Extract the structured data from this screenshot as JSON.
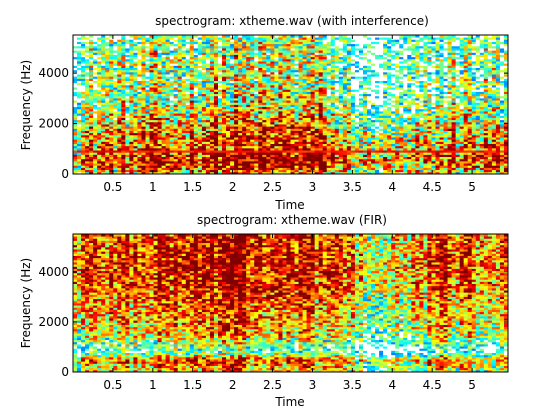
{
  "chart_data": [
    {
      "type": "heatmap",
      "title": "spectrogram: xtheme.wav (with interference)",
      "xlabel": "Time",
      "ylabel": "Frequency (Hz)",
      "xlim": [
        0.0,
        5.45
      ],
      "ylim": [
        0,
        5512
      ],
      "xticks": [
        "0.5",
        "1",
        "1.5",
        "2",
        "2.5",
        "3",
        "3.5",
        "4",
        "4.5",
        "5"
      ],
      "yticks": [
        "0",
        "2000",
        "4000"
      ],
      "colormap": "jet",
      "cmap_range": [
        0.35,
        0.8
      ],
      "grid": false,
      "freq_profile": [
        {
          "hz": 0,
          "level": 0.55
        },
        {
          "hz": 500,
          "level": 0.7
        },
        {
          "hz": 1000,
          "level": 0.62
        },
        {
          "hz": 1700,
          "level": 0.6
        },
        {
          "hz": 2500,
          "level": 0.5
        },
        {
          "hz": 3500,
          "level": 0.46
        },
        {
          "hz": 4500,
          "level": 0.46
        },
        {
          "hz": 5512,
          "level": 0.42
        }
      ],
      "time_activity": [
        {
          "t": 0.0,
          "level": 0.0
        },
        {
          "t": 0.5,
          "level": 0.05
        },
        {
          "t": 1.5,
          "level": 0.08
        },
        {
          "t": 1.9,
          "level": 0.12
        },
        {
          "t": 2.1,
          "level": 0.1
        },
        {
          "t": 3.1,
          "level": 0.1
        },
        {
          "t": 3.3,
          "level": 0.02
        },
        {
          "t": 3.7,
          "level": -0.08
        },
        {
          "t": 4.2,
          "level": -0.06
        },
        {
          "t": 4.7,
          "level": 0.04
        },
        {
          "t": 5.0,
          "level": 0.05
        },
        {
          "t": 5.45,
          "level": 0.03
        }
      ],
      "interference_tone_hz": 880
    },
    {
      "type": "heatmap",
      "title": "spectrogram: xtheme.wav (FIR)",
      "xlabel": "Time",
      "ylabel": "Frequency (Hz)",
      "xlim": [
        0.0,
        5.45
      ],
      "ylim": [
        0,
        5512
      ],
      "xticks": [
        "0.5",
        "1",
        "1.5",
        "2",
        "2.5",
        "3",
        "3.5",
        "4",
        "4.5",
        "5"
      ],
      "yticks": [
        "0",
        "2000",
        "4000"
      ],
      "colormap": "jet",
      "cmap_range": [
        0.35,
        0.9
      ],
      "grid": false,
      "freq_profile": [
        {
          "hz": 0,
          "level": 0.6
        },
        {
          "hz": 500,
          "level": 0.7
        },
        {
          "hz": 800,
          "level": 0.42
        },
        {
          "hz": 1000,
          "level": 0.45
        },
        {
          "hz": 1500,
          "level": 0.62
        },
        {
          "hz": 2500,
          "level": 0.68
        },
        {
          "hz": 3500,
          "level": 0.74
        },
        {
          "hz": 4500,
          "level": 0.76
        },
        {
          "hz": 5512,
          "level": 0.74
        }
      ],
      "time_activity": [
        {
          "t": 0.0,
          "level": 0.0
        },
        {
          "t": 1.0,
          "level": 0.06
        },
        {
          "t": 1.5,
          "level": 0.1
        },
        {
          "t": 2.0,
          "level": 0.12
        },
        {
          "t": 2.5,
          "level": 0.06
        },
        {
          "t": 3.0,
          "level": 0.06
        },
        {
          "t": 3.3,
          "level": 0.02
        },
        {
          "t": 3.8,
          "level": -0.12
        },
        {
          "t": 4.2,
          "level": -0.1
        },
        {
          "t": 4.5,
          "level": 0.05
        },
        {
          "t": 5.0,
          "level": 0.02
        },
        {
          "t": 5.45,
          "level": 0.0
        }
      ],
      "interference_tone_hz": null
    }
  ]
}
